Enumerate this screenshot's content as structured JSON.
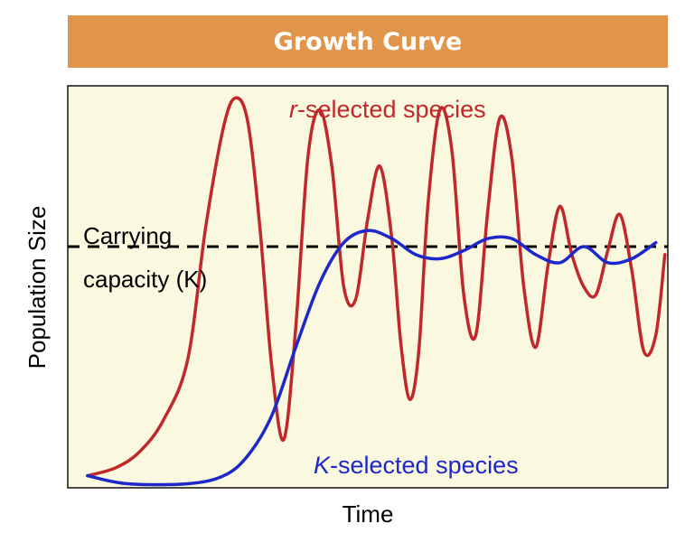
{
  "chart_data": {
    "type": "line",
    "title": "Growth Curve",
    "xlabel": "Time",
    "ylabel": "Population Size",
    "xlim": [
      0,
      100
    ],
    "ylim": [
      0,
      100
    ],
    "grid": false,
    "annotations": [
      {
        "lines": [
          "Carrying",
          "capacity (K)"
        ],
        "y": 60
      }
    ],
    "reference_lines": [
      {
        "orientation": "horizontal",
        "y": 60,
        "style": "dashed",
        "color": "#000000"
      }
    ],
    "series": [
      {
        "name": "r-selected species",
        "name_italic": "r",
        "name_rest": "-selected species",
        "color": "#C0282B",
        "x": [
          3.3,
          8,
          12,
          16,
          20,
          23,
          26,
          28,
          30,
          32,
          34,
          36,
          38,
          40,
          42,
          44,
          46,
          48,
          50,
          52,
          54,
          55.5,
          57,
          58.5,
          60,
          62,
          64,
          66,
          68,
          70,
          72,
          74,
          76,
          78,
          80,
          82,
          84,
          86,
          88,
          90,
          92,
          94,
          96,
          98,
          99.5
        ],
        "y": [
          3,
          5,
          9,
          17,
          32,
          65,
          90,
          97,
          91,
          65,
          30,
          12,
          40,
          82,
          94,
          80,
          50,
          47,
          67,
          80,
          62,
          36,
          22,
          34,
          70,
          94,
          84,
          48,
          38,
          69,
          92,
          82,
          50,
          35,
          55,
          70,
          58,
          50,
          48,
          59,
          68,
          54,
          34,
          38,
          58
        ]
      },
      {
        "name": "K-selected species",
        "name_italic": "K",
        "name_rest": "-selected species",
        "color": "#1E28C8",
        "x": [
          3.3,
          10,
          20,
          26,
          30,
          34,
          38,
          42,
          46,
          50,
          54,
          58,
          62,
          66,
          70,
          74,
          78,
          82,
          86,
          90,
          94,
          98
        ],
        "y": [
          3,
          1,
          1,
          3,
          8,
          18,
          35,
          51,
          61,
          64,
          62,
          58,
          57,
          59,
          62,
          62,
          58,
          56,
          60,
          56,
          57,
          61
        ]
      }
    ],
    "legend": "inline labels"
  }
}
